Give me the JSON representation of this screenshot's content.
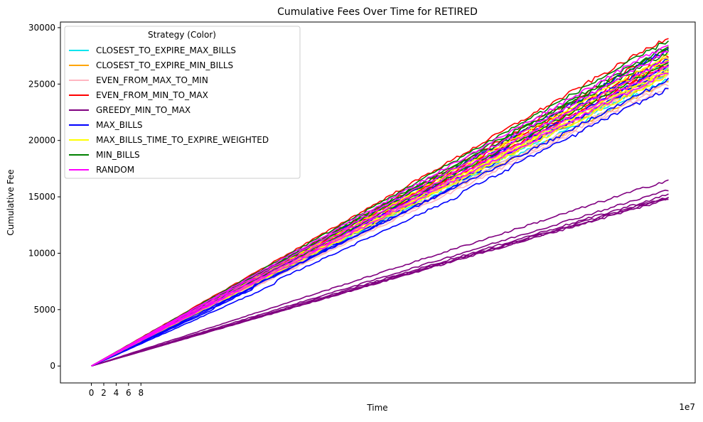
{
  "chart_data": {
    "type": "line",
    "title": "Cumulative Fees Over Time for RETIRED",
    "xlabel": "Time",
    "ylabel": "Cumulative Fee",
    "x_offset_label": "1e7",
    "xlim": [
      -5.0,
      97.5
    ],
    "ylim": [
      -1500,
      30500
    ],
    "x_ticks": [
      0,
      2,
      4,
      6,
      8
    ],
    "x_tick_labels": [
      "0",
      "2",
      "4",
      "6",
      "8"
    ],
    "y_ticks": [
      0,
      5000,
      10000,
      15000,
      20000,
      25000,
      30000
    ],
    "y_tick_labels": [
      "0",
      "5000",
      "10000",
      "15000",
      "20000",
      "25000",
      "30000"
    ],
    "grid": false,
    "legend_title": "Strategy (Color)",
    "legend_position": "upper-left",
    "x_end": 93.2,
    "series": [
      {
        "name": "CLOSEST_TO_EXPIRE_MAX_BILLS",
        "color": "#00e5ee",
        "runs_final": [
          25400,
          26000,
          26500,
          27100,
          25800
        ]
      },
      {
        "name": "CLOSEST_TO_EXPIRE_MIN_BILLS",
        "color": "#ffa500",
        "runs_final": [
          25200,
          25900,
          26600,
          27300,
          26100
        ]
      },
      {
        "name": "EVEN_FROM_MAX_TO_MIN",
        "color": "#ffb6c1",
        "runs_final": [
          24700,
          25300,
          25900,
          26400,
          25000
        ]
      },
      {
        "name": "EVEN_FROM_MIN_TO_MAX",
        "color": "#ff0000",
        "runs_final": [
          26700,
          27500,
          28200,
          29200,
          27000
        ]
      },
      {
        "name": "GREEDY_MIN_TO_MAX",
        "color": "#800080",
        "runs_final": [
          14800,
          15000,
          15200,
          15600,
          16500,
          14900
        ]
      },
      {
        "name": "MAX_BILLS",
        "color": "#0000ff",
        "runs_final": [
          24600,
          25400,
          26200,
          27300,
          28100,
          26600
        ]
      },
      {
        "name": "MAX_BILLS_TIME_TO_EXPIRE_WEIGHTED",
        "color": "#ffff00",
        "runs_final": [
          25800,
          26400,
          27100,
          27600,
          26200
        ]
      },
      {
        "name": "MIN_BILLS",
        "color": "#008000",
        "runs_final": [
          27000,
          27800,
          28400,
          28900,
          28100
        ]
      },
      {
        "name": "RANDOM",
        "color": "#ff00ff",
        "runs_final": [
          26100,
          26600,
          27200,
          27900,
          28600
        ]
      }
    ]
  }
}
